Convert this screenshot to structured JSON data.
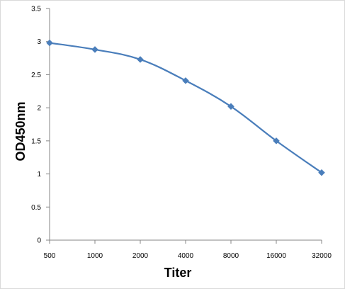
{
  "chart_data": {
    "type": "line",
    "title": "",
    "xlabel": "Titer",
    "ylabel": "OD450nm",
    "categories": [
      "500",
      "1000",
      "2000",
      "4000",
      "8000",
      "16000",
      "32000"
    ],
    "series": [
      {
        "values": [
          2.98,
          2.88,
          2.73,
          2.41,
          2.02,
          1.5,
          1.02
        ],
        "color": "#4a7ebb",
        "marker": "diamond"
      }
    ],
    "ylim": [
      0,
      3.5
    ],
    "yticks": [
      0,
      0.5,
      1,
      1.5,
      2,
      2.5,
      3,
      3.5
    ],
    "ytick_labels": [
      "0",
      "0.5",
      "1",
      "1.5",
      "2",
      "2.5",
      "3",
      "3.5"
    ],
    "grid": false,
    "legend": "none",
    "axis_color": "#868686"
  }
}
